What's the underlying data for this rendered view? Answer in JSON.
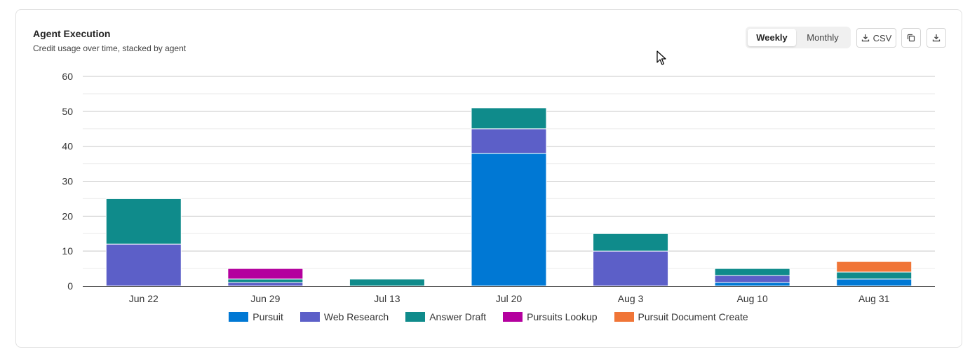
{
  "header": {
    "title": "Agent Execution",
    "subtitle": "Credit usage over time, stacked by agent"
  },
  "toolbar": {
    "weekly_label": "Weekly",
    "monthly_label": "Monthly",
    "csv_label": "CSV",
    "selected_period": "Weekly"
  },
  "colors": {
    "Pursuit": "#0078d4",
    "Web Research": "#5c5fc8",
    "Answer Draft": "#0f8b8b",
    "Pursuits Lookup": "#b4009e",
    "Pursuit Document Create": "#f07537"
  },
  "chart_data": {
    "type": "bar",
    "stacked": true,
    "categories": [
      "Jun 22",
      "Jun 29",
      "Jul 13",
      "Jul 20",
      "Aug 3",
      "Aug 10",
      "Aug 31"
    ],
    "series": [
      {
        "name": "Pursuit",
        "values": [
          0,
          0,
          0,
          38,
          0,
          1,
          2
        ]
      },
      {
        "name": "Web Research",
        "values": [
          12,
          1,
          0,
          7,
          10,
          2,
          0
        ]
      },
      {
        "name": "Answer Draft",
        "values": [
          13,
          1,
          2,
          6,
          5,
          2,
          2
        ]
      },
      {
        "name": "Pursuits Lookup",
        "values": [
          0,
          3,
          0,
          0,
          0,
          0,
          0
        ]
      },
      {
        "name": "Pursuit Document Create",
        "values": [
          0,
          0,
          0,
          0,
          0,
          0,
          3
        ]
      }
    ],
    "y_ticks": [
      0,
      10,
      20,
      30,
      40,
      50,
      60
    ],
    "ylim": [
      0,
      60
    ],
    "grid": true,
    "legend_position": "bottom"
  }
}
